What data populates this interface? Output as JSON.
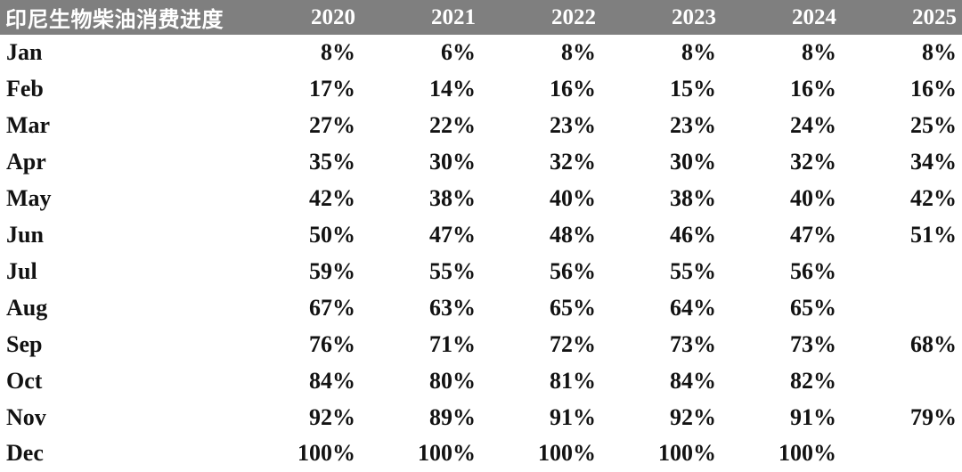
{
  "header": {
    "title": "印尼生物柴油消费进度",
    "years": [
      "2020",
      "2021",
      "2022",
      "2023",
      "2024",
      "2025"
    ]
  },
  "table": {
    "rows": [
      {
        "month": "Jan",
        "values": [
          "8%",
          "6%",
          "8%",
          "8%",
          "8%",
          "8%"
        ]
      },
      {
        "month": "Feb",
        "values": [
          "17%",
          "14%",
          "16%",
          "15%",
          "16%",
          "16%"
        ]
      },
      {
        "month": "Mar",
        "values": [
          "27%",
          "22%",
          "23%",
          "23%",
          "24%",
          "25%"
        ]
      },
      {
        "month": "Apr",
        "values": [
          "35%",
          "30%",
          "32%",
          "30%",
          "32%",
          "34%"
        ]
      },
      {
        "month": "May",
        "values": [
          "42%",
          "38%",
          "40%",
          "38%",
          "40%",
          "42%"
        ]
      },
      {
        "month": "Jun",
        "values": [
          "50%",
          "47%",
          "48%",
          "46%",
          "47%",
          "51%"
        ]
      },
      {
        "month": "Jul",
        "values": [
          "59%",
          "55%",
          "56%",
          "55%",
          "56%",
          ""
        ]
      },
      {
        "month": "Aug",
        "values": [
          "67%",
          "63%",
          "65%",
          "64%",
          "65%",
          ""
        ]
      },
      {
        "month": "Sep",
        "values": [
          "76%",
          "71%",
          "72%",
          "73%",
          "73%",
          "68%"
        ]
      },
      {
        "month": "Oct",
        "values": [
          "84%",
          "80%",
          "81%",
          "84%",
          "82%",
          ""
        ]
      },
      {
        "month": "Nov",
        "values": [
          "92%",
          "89%",
          "91%",
          "92%",
          "91%",
          "79%"
        ]
      },
      {
        "month": "Dec",
        "values": [
          "100%",
          "100%",
          "100%",
          "100%",
          "100%",
          ""
        ]
      }
    ]
  },
  "colors": {
    "header_bg": "#7f7f7f",
    "header_text": "#ffffff",
    "body_text": "#121212",
    "body_bg": "#ffffff"
  },
  "chart_data": {
    "type": "table",
    "title": "印尼生物柴油消费进度",
    "unit": "%",
    "categories": [
      "Jan",
      "Feb",
      "Mar",
      "Apr",
      "May",
      "Jun",
      "Jul",
      "Aug",
      "Sep",
      "Oct",
      "Nov",
      "Dec"
    ],
    "series": [
      {
        "name": "2020",
        "values": [
          8,
          17,
          27,
          35,
          42,
          50,
          59,
          67,
          76,
          84,
          92,
          100
        ]
      },
      {
        "name": "2021",
        "values": [
          6,
          14,
          22,
          30,
          38,
          47,
          55,
          63,
          71,
          80,
          89,
          100
        ]
      },
      {
        "name": "2022",
        "values": [
          8,
          16,
          23,
          32,
          40,
          48,
          56,
          65,
          72,
          81,
          91,
          100
        ]
      },
      {
        "name": "2023",
        "values": [
          8,
          15,
          23,
          30,
          38,
          46,
          55,
          64,
          73,
          84,
          92,
          100
        ]
      },
      {
        "name": "2024",
        "values": [
          8,
          16,
          24,
          32,
          40,
          47,
          56,
          65,
          73,
          82,
          91,
          100
        ]
      },
      {
        "name": "2025",
        "values": [
          8,
          16,
          25,
          34,
          42,
          51,
          null,
          null,
          68,
          null,
          79,
          null
        ]
      }
    ]
  }
}
